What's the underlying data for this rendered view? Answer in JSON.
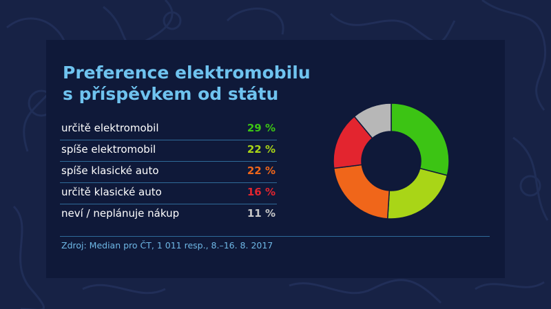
{
  "colors": {
    "background": "#172245",
    "panel": "#0f1939",
    "title": "#6fc3ef",
    "source": "#6fb8e6",
    "divider": "#2f6c9a"
  },
  "title_lines": [
    "Preference elektromobilu",
    "s příspěvkem od státu"
  ],
  "source": "Zdroj: Median pro ČT, 1 011 resp., 8.–16. 8. 2017",
  "chart_data": {
    "type": "pie",
    "title": "Preference elektromobilu s příspěvkem od státu",
    "donut": true,
    "categories": [
      "určitě elektromobil",
      "spíše elektromobil",
      "spíše klasické auto",
      "určitě klasické auto",
      "neví / neplánuje nákup"
    ],
    "values": [
      29,
      22,
      22,
      16,
      11
    ],
    "labels": [
      "29 %",
      "22 %",
      "22 %",
      "16 %",
      "11 %"
    ],
    "colors": [
      "#3cc414",
      "#a9d517",
      "#f0661a",
      "#e3252f",
      "#b7b7b7"
    ],
    "legend_placement": "left"
  }
}
